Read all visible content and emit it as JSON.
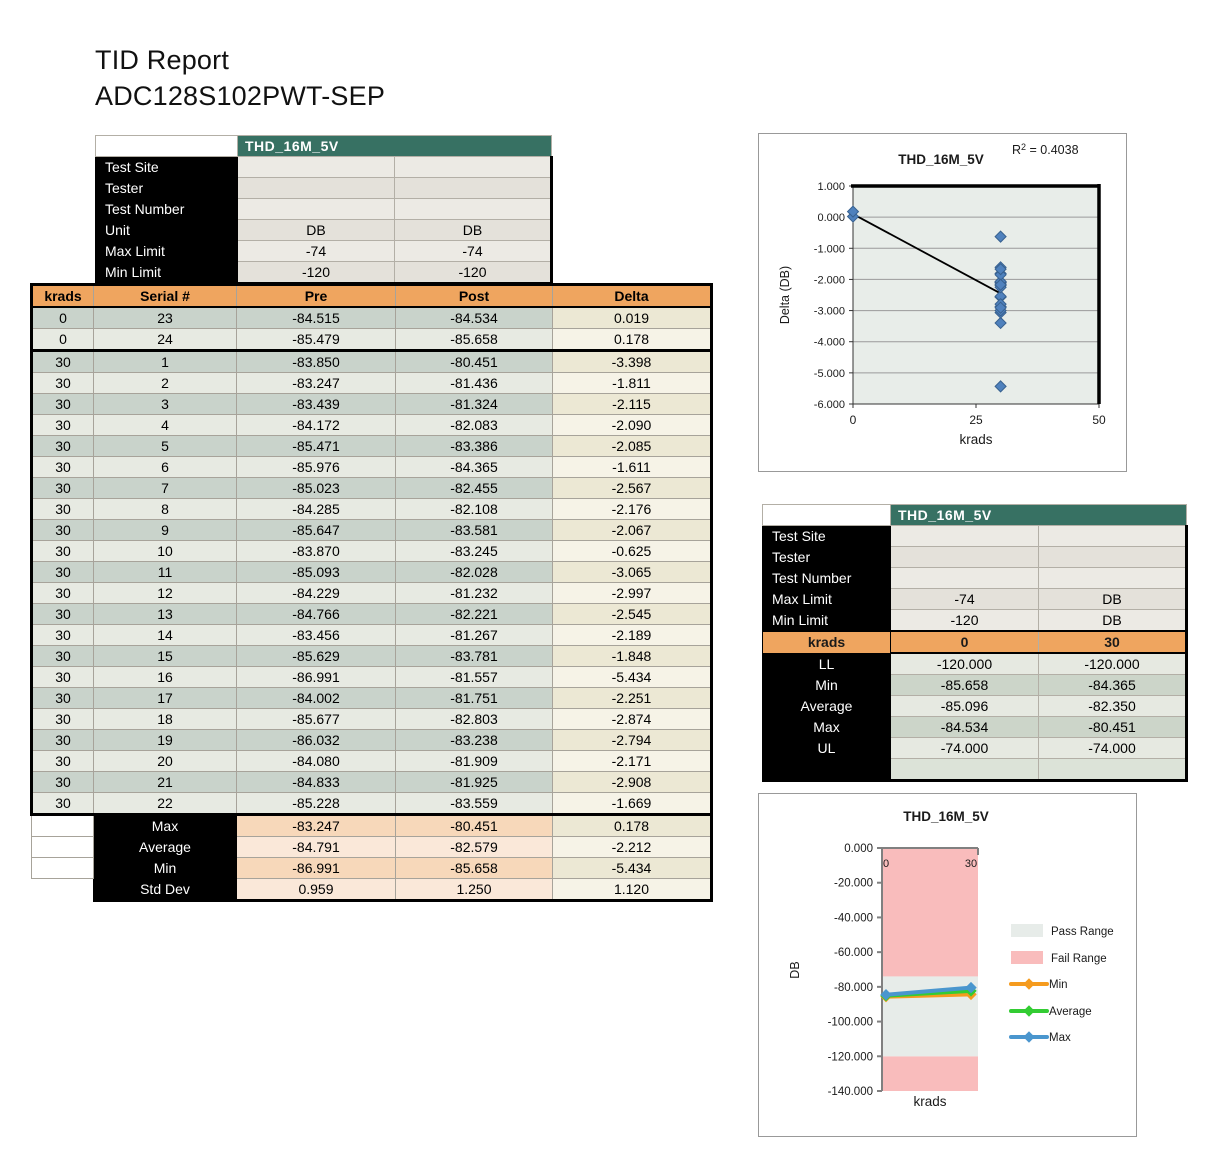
{
  "title": {
    "line1": "TID Report",
    "line2": "ADC128S102PWT-SEP"
  },
  "colors": {
    "teal_header": "#377163",
    "orange_header": "#efa55f",
    "row_dark": "#c9d3cb",
    "row_light": "#e7eae2",
    "delta_dark": "#ece8d4",
    "delta_light": "#f6f3e7",
    "summary_peach_dark": "#f7d8ba",
    "summary_peach_light": "#fae8d9",
    "pass_range": "#e7ece9",
    "fail_range": "#f9bcbc",
    "series_min": "#f59b1e",
    "series_average": "#33cc33",
    "series_max": "#4a96ce",
    "scatter_point": "#4f81bd"
  },
  "top_table": {
    "header": "THD_16M_5V",
    "rows": [
      {
        "label": "Test Site",
        "v1": "",
        "v2": ""
      },
      {
        "label": "Tester",
        "v1": "",
        "v2": ""
      },
      {
        "label": "Test Number",
        "v1": "",
        "v2": ""
      },
      {
        "label": "Unit",
        "v1": "DB",
        "v2": "DB"
      },
      {
        "label": "Max Limit",
        "v1": "-74",
        "v2": "-74"
      },
      {
        "label": "Min Limit",
        "v1": "-120",
        "v2": "-120"
      }
    ]
  },
  "main_table": {
    "columns": [
      "krads",
      "Serial #",
      "Pre",
      "Post",
      "Delta"
    ],
    "rows": [
      [
        "0",
        "23",
        "-84.515",
        "-84.534",
        "0.019"
      ],
      [
        "0",
        "24",
        "-85.479",
        "-85.658",
        "0.178"
      ],
      [
        "30",
        "1",
        "-83.850",
        "-80.451",
        "-3.398"
      ],
      [
        "30",
        "2",
        "-83.247",
        "-81.436",
        "-1.811"
      ],
      [
        "30",
        "3",
        "-83.439",
        "-81.324",
        "-2.115"
      ],
      [
        "30",
        "4",
        "-84.172",
        "-82.083",
        "-2.090"
      ],
      [
        "30",
        "5",
        "-85.471",
        "-83.386",
        "-2.085"
      ],
      [
        "30",
        "6",
        "-85.976",
        "-84.365",
        "-1.611"
      ],
      [
        "30",
        "7",
        "-85.023",
        "-82.455",
        "-2.567"
      ],
      [
        "30",
        "8",
        "-84.285",
        "-82.108",
        "-2.176"
      ],
      [
        "30",
        "9",
        "-85.647",
        "-83.581",
        "-2.067"
      ],
      [
        "30",
        "10",
        "-83.870",
        "-83.245",
        "-0.625"
      ],
      [
        "30",
        "11",
        "-85.093",
        "-82.028",
        "-3.065"
      ],
      [
        "30",
        "12",
        "-84.229",
        "-81.232",
        "-2.997"
      ],
      [
        "30",
        "13",
        "-84.766",
        "-82.221",
        "-2.545"
      ],
      [
        "30",
        "14",
        "-83.456",
        "-81.267",
        "-2.189"
      ],
      [
        "30",
        "15",
        "-85.629",
        "-83.781",
        "-1.848"
      ],
      [
        "30",
        "16",
        "-86.991",
        "-81.557",
        "-5.434"
      ],
      [
        "30",
        "17",
        "-84.002",
        "-81.751",
        "-2.251"
      ],
      [
        "30",
        "18",
        "-85.677",
        "-82.803",
        "-2.874"
      ],
      [
        "30",
        "19",
        "-86.032",
        "-83.238",
        "-2.794"
      ],
      [
        "30",
        "20",
        "-84.080",
        "-81.909",
        "-2.171"
      ],
      [
        "30",
        "21",
        "-84.833",
        "-81.925",
        "-2.908"
      ],
      [
        "30",
        "22",
        "-85.228",
        "-83.559",
        "-1.669"
      ]
    ],
    "summary": [
      [
        "Max",
        "-83.247",
        "-80.451",
        "0.178"
      ],
      [
        "Average",
        "-84.791",
        "-82.579",
        "-2.212"
      ],
      [
        "Min",
        "-86.991",
        "-85.658",
        "-5.434"
      ],
      [
        "Std Dev",
        "0.959",
        "1.250",
        "1.120"
      ]
    ]
  },
  "mid_table": {
    "header": "THD_16M_5V",
    "info_rows": [
      {
        "label": "Test Site",
        "v1": "",
        "v2": ""
      },
      {
        "label": "Tester",
        "v1": "",
        "v2": ""
      },
      {
        "label": "Test Number",
        "v1": "",
        "v2": ""
      },
      {
        "label": "Max Limit",
        "v1": "-74",
        "v2": "DB"
      },
      {
        "label": "Min Limit",
        "v1": "-120",
        "v2": "DB"
      }
    ],
    "krads_row": {
      "label": "krads",
      "v1": "0",
      "v2": "30"
    },
    "stat_rows": [
      {
        "label": "LL",
        "v1": "-120.000",
        "v2": "-120.000"
      },
      {
        "label": "Min",
        "v1": "-85.658",
        "v2": "-84.365"
      },
      {
        "label": "Average",
        "v1": "-85.096",
        "v2": "-82.350"
      },
      {
        "label": "Max",
        "v1": "-84.534",
        "v2": "-80.451"
      },
      {
        "label": "UL",
        "v1": "-74.000",
        "v2": "-74.000"
      }
    ]
  },
  "chart_data": [
    {
      "type": "scatter",
      "title": "THD_16M_5V",
      "r_squared_label": {
        "base": "R",
        "sup": "2",
        "suffix": " = 0.4038"
      },
      "r_squared": 0.4038,
      "xlabel": "krads",
      "ylabel": "Delta (DB)",
      "xlim": [
        0,
        50
      ],
      "xticks": [
        "0",
        "25",
        "50"
      ],
      "ylim": [
        -6,
        1
      ],
      "yticks": [
        "1.000",
        "0.000",
        "-1.000",
        "-2.000",
        "-3.000",
        "-4.000",
        "-5.000",
        "-6.000"
      ],
      "grid": true,
      "legend_position": "none",
      "series": [
        {
          "name": "Delta",
          "x": [
            0,
            0,
            30,
            30,
            30,
            30,
            30,
            30,
            30,
            30,
            30,
            30,
            30,
            30,
            30,
            30,
            30,
            30,
            30,
            30,
            30,
            30,
            30,
            30
          ],
          "y": [
            0.019,
            0.178,
            -3.398,
            -1.811,
            -2.115,
            -2.09,
            -2.085,
            -1.611,
            -2.567,
            -2.176,
            -2.067,
            -0.625,
            -3.065,
            -2.997,
            -2.545,
            -2.189,
            -1.848,
            -5.434,
            -2.251,
            -2.874,
            -2.794,
            -2.171,
            -2.908,
            -1.669
          ]
        }
      ],
      "trendline": {
        "x": [
          0,
          30
        ],
        "y": [
          0.1,
          -2.45
        ]
      }
    },
    {
      "type": "line",
      "title": "THD_16M_5V",
      "xlabel": "krads",
      "ylabel": "DB",
      "x": [
        0,
        30
      ],
      "xticks": [
        "0",
        "30"
      ],
      "ylim": [
        -140,
        0
      ],
      "yticks": [
        "0.000",
        "-20.000",
        "-40.000",
        "-60.000",
        "-80.000",
        "-100.000",
        "-120.000",
        "-140.000"
      ],
      "pass_range": [
        -120,
        -74
      ],
      "fail_ranges": [
        [
          -74,
          0
        ],
        [
          -140,
          -120
        ]
      ],
      "series": [
        {
          "name": "Min",
          "values": [
            -85.658,
            -84.365
          ]
        },
        {
          "name": "Average",
          "values": [
            -85.096,
            -82.35
          ]
        },
        {
          "name": "Max",
          "values": [
            -84.534,
            -80.451
          ]
        }
      ],
      "legend": [
        "Pass Range",
        "Fail Range",
        "Min",
        "Average",
        "Max"
      ],
      "legend_position": "right"
    }
  ]
}
